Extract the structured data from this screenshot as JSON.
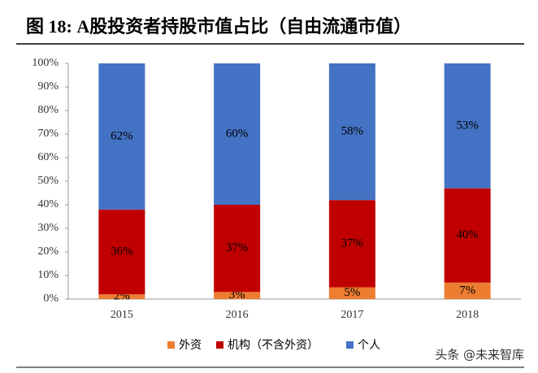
{
  "chart_data": {
    "type": "stacked_bar",
    "title": "图 18: A股投资者持股市值占比（自由流通市值）",
    "categories": [
      "2015",
      "2016",
      "2017",
      "2018"
    ],
    "series": [
      {
        "name": "外资",
        "color": "#ED7D31",
        "values": [
          2,
          3,
          5,
          7
        ],
        "value_labels": [
          "2%",
          "3%",
          "5%",
          "7%"
        ]
      },
      {
        "name": "机构（不含外资）",
        "color": "#C00000",
        "values": [
          36,
          37,
          37,
          40
        ],
        "value_labels": [
          "36%",
          "37%",
          "37%",
          "40%"
        ]
      },
      {
        "name": "个人",
        "color": "#4472C4",
        "values": [
          62,
          60,
          58,
          53
        ],
        "value_labels": [
          "62%",
          "60%",
          "58%",
          "53%"
        ]
      }
    ],
    "ylim": [
      0,
      100
    ],
    "yticks": [
      {
        "value": 0,
        "label": "0%"
      },
      {
        "value": 10,
        "label": "10%"
      },
      {
        "value": 20,
        "label": "20%"
      },
      {
        "value": 30,
        "label": "30%"
      },
      {
        "value": 40,
        "label": "40%"
      },
      {
        "value": 50,
        "label": "50%"
      },
      {
        "value": 60,
        "label": "60%"
      },
      {
        "value": 70,
        "label": "70%"
      },
      {
        "value": 80,
        "label": "80%"
      },
      {
        "value": 90,
        "label": "90%"
      },
      {
        "value": 100,
        "label": "100%"
      }
    ],
    "watermark": "头条 @未来智库"
  }
}
